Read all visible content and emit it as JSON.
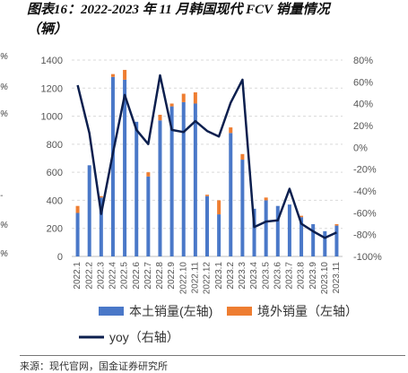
{
  "title": {
    "line1": "图表16：2022-2023 年 11 月韩国现代 FCV 销量情况",
    "line2": "（辆）"
  },
  "left_edge_marks": [
    "%",
    "%",
    "%",
    "-",
    "%",
    "%"
  ],
  "footer": {
    "source": "来源：现代官网，国金证券研究所"
  },
  "chart_data": {
    "type": "bar",
    "categories": [
      "2022.1",
      "2022.2",
      "2022.3",
      "2022.4",
      "2022.5",
      "2022.6",
      "2022.7",
      "2022.8",
      "2022.9",
      "2022.10",
      "2022.11",
      "2022.12",
      "2023.1",
      "2023.2",
      "2023.3",
      "2023.4",
      "2023.5",
      "2023.6",
      "2023.7",
      "2023.8",
      "2023.9",
      "2023.10",
      "2023.11"
    ],
    "series": [
      {
        "name": "本土销量(左轴)",
        "type": "bar",
        "axis": "left",
        "stack": "sales",
        "color": "#4A78C8",
        "values": [
          310,
          650,
          420,
          1280,
          1260,
          960,
          570,
          970,
          1070,
          1100,
          1090,
          430,
          300,
          880,
          690,
          340,
          400,
          360,
          370,
          280,
          230,
          180,
          220
        ]
      },
      {
        "name": "境外销量（左轴）",
        "type": "bar",
        "axis": "left",
        "stack": "sales",
        "color": "#EE7D31",
        "values": [
          50,
          0,
          10,
          20,
          70,
          0,
          30,
          40,
          20,
          60,
          80,
          10,
          100,
          40,
          40,
          0,
          20,
          0,
          0,
          10,
          0,
          0,
          10
        ]
      },
      {
        "name": "yoy（右轴）",
        "type": "line",
        "axis": "right",
        "color": "#0C1F4E",
        "values": [
          57,
          13,
          -61,
          -5,
          48,
          16,
          3,
          66,
          16,
          14,
          24,
          15,
          10,
          41,
          62,
          -73,
          -68,
          -67,
          -38,
          -70,
          -77,
          -83,
          -78
        ]
      }
    ],
    "left_axis": {
      "ylim": [
        0,
        1400
      ],
      "ticks": [
        0,
        200,
        400,
        600,
        800,
        1000,
        1200,
        1400
      ]
    },
    "right_axis": {
      "ylim": [
        -100,
        80
      ],
      "ticks": [
        "80%",
        "60%",
        "40%",
        "20%",
        "0%",
        "-20%",
        "-40%",
        "-60%",
        "-80%",
        "-100%"
      ]
    },
    "legend": {
      "placement": "bottom"
    },
    "grid": true
  }
}
